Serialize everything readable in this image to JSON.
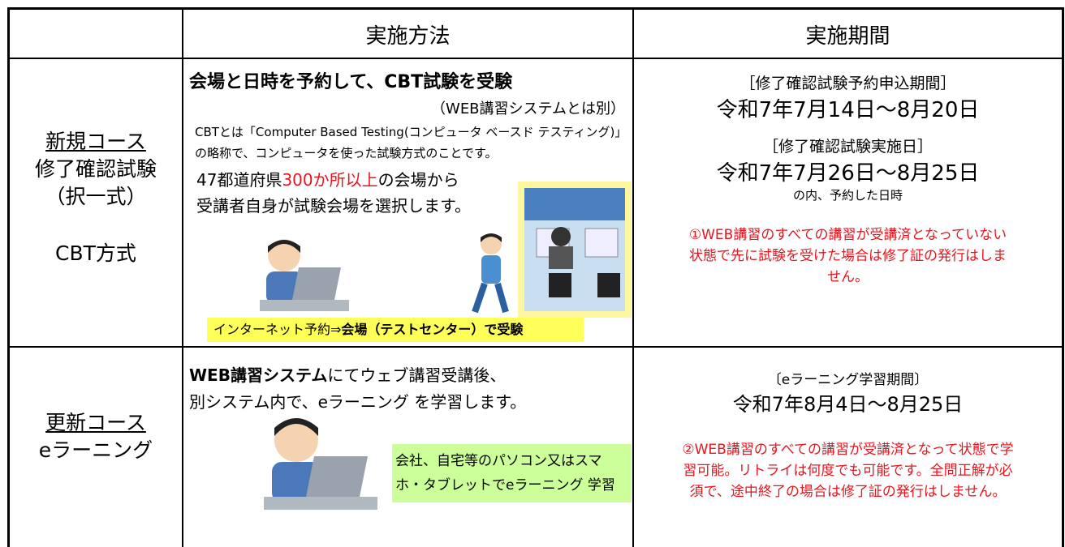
{
  "header": {
    "method": "実施方法",
    "period": "実施期間"
  },
  "rows": [
    {
      "course": {
        "title": "新規コース",
        "lines": [
          "修了確認試験",
          "（択一式）",
          "CBT方式"
        ]
      },
      "method": {
        "heading": "会場と日時を予約して、CBT試験を受験",
        "note": "（WEB講習システムとは別）",
        "description": "CBTとは「Computer Based Testing(コンピュータ ベースド テスティング)」の略称で、コンピュータを使った試験方式のことです。",
        "venue": [
          "47都道府県",
          "300か所以上",
          "の会場から"
        ],
        "venue_line2": "受講者自身が試験会場を選択します。",
        "caption": [
          "インターネット予約⇒",
          "会場（テストセンター）で受験"
        ]
      },
      "period": {
        "label": "［修了確認試験予約申込期間］",
        "dates": "令和7年7月14日～8月20日",
        "label2": "［修了確認試験実施日］",
        "dates2": "令和7年7月26日～8月25日",
        "sub": "の内、予約した日時",
        "notice": "①WEB講習のすべての講習が受講済となっていない状態で先に試験を受けた場合は修了証の発行はしません。"
      }
    },
    {
      "course": {
        "title": "更新コース",
        "lines": [
          "eラーニング"
        ]
      },
      "method": {
        "line1": [
          "WEB講習システム",
          "にてウェブ講習受講後、"
        ],
        "line2": "別システム内で、eラーニング を学習します。",
        "box": "会社、自宅等のパソコン又はスマホ・タブレットでeラーニング 学習"
      },
      "period": {
        "label": "〔eラーニング学習期間〕",
        "dates": "令和7年8月4日～8月25日",
        "notice": "②WEB講習のすべての講習が受講済となって状態で学習可能。リトライは何度でも可能です。全問正解が必須で、途中終了の場合は修了証の発行はしません。"
      }
    }
  ]
}
